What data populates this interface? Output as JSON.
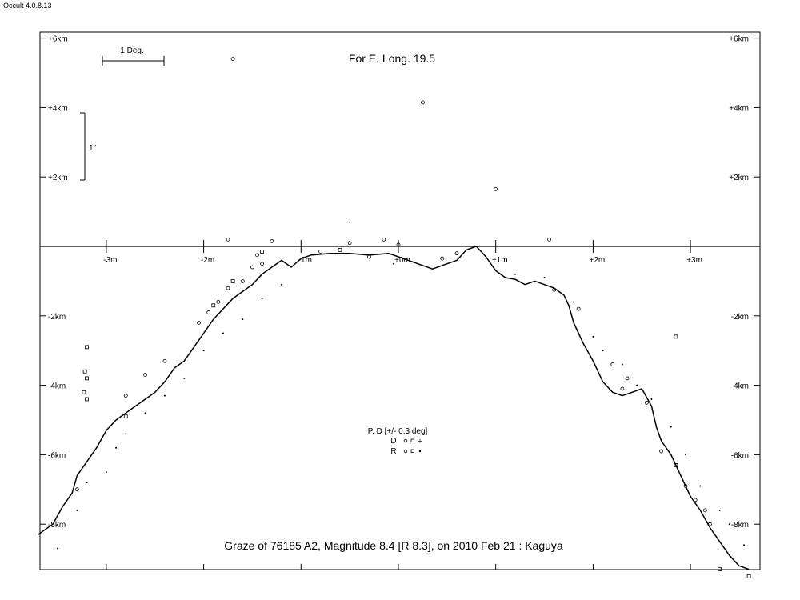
{
  "app": {
    "title": "Occult 4.0.8.13"
  },
  "chart_data": {
    "type": "scatter",
    "title": "Graze of  76185 A2,  Magnitude 8.4 [R 8.3],  on 2010 Feb 21  :  Kaguya",
    "subtitle": "For E. Long. 19.5",
    "xlabel": "",
    "ylabel": "",
    "xlim": [
      -3.7,
      3.7
    ],
    "ylim": [
      -9.3,
      6.2
    ],
    "x_unit": "m",
    "y_unit": "km",
    "x_ticks": [
      {
        "value": -3,
        "label": "-3m"
      },
      {
        "value": -2,
        "label": "-2m"
      },
      {
        "value": -1,
        "label": "-1m"
      },
      {
        "value": 0,
        "label": "+0m"
      },
      {
        "value": 1,
        "label": "+1m"
      },
      {
        "value": 2,
        "label": "+2m"
      },
      {
        "value": 3,
        "label": "+3m"
      }
    ],
    "y_ticks": [
      {
        "value": 6,
        "label": "+6km"
      },
      {
        "value": 4,
        "label": "+4km"
      },
      {
        "value": 2,
        "label": "+2km"
      },
      {
        "value": -2,
        "label": "-2km"
      },
      {
        "value": -4,
        "label": "-4km"
      },
      {
        "value": -6,
        "label": "-6km"
      },
      {
        "value": -8,
        "label": "-8km"
      }
    ],
    "scale_bars": {
      "horizontal_label": "1 Deg.",
      "vertical_label": "1\""
    },
    "legend": {
      "placement": "bottom-center",
      "header": "P, D [+/- 0.3 deg]",
      "rows": [
        {
          "label": "D",
          "symbols": [
            "circle",
            "square",
            "plus"
          ]
        },
        {
          "label": "R",
          "symbols": [
            "circle",
            "square",
            "dot"
          ]
        }
      ]
    },
    "series": [
      {
        "kind": "limb-profile",
        "points": [
          [
            -3.7,
            -8.3
          ],
          [
            -3.55,
            -8.0
          ],
          [
            -3.45,
            -7.5
          ],
          [
            -3.35,
            -7.1
          ],
          [
            -3.3,
            -6.6
          ],
          [
            -3.2,
            -6.2
          ],
          [
            -3.1,
            -5.8
          ],
          [
            -3.0,
            -5.3
          ],
          [
            -2.9,
            -5.0
          ],
          [
            -2.8,
            -4.8
          ],
          [
            -2.7,
            -4.6
          ],
          [
            -2.6,
            -4.4
          ],
          [
            -2.5,
            -4.2
          ],
          [
            -2.4,
            -3.9
          ],
          [
            -2.3,
            -3.5
          ],
          [
            -2.2,
            -3.3
          ],
          [
            -2.1,
            -2.9
          ],
          [
            -2.0,
            -2.5
          ],
          [
            -1.9,
            -2.1
          ],
          [
            -1.8,
            -1.8
          ],
          [
            -1.7,
            -1.5
          ],
          [
            -1.6,
            -1.3
          ],
          [
            -1.5,
            -1.1
          ],
          [
            -1.4,
            -0.8
          ],
          [
            -1.3,
            -0.6
          ],
          [
            -1.2,
            -0.4
          ],
          [
            -1.1,
            -0.6
          ],
          [
            -1.0,
            -0.35
          ],
          [
            -0.9,
            -0.25
          ],
          [
            -0.7,
            -0.2
          ],
          [
            -0.5,
            -0.2
          ],
          [
            -0.3,
            -0.25
          ],
          [
            -0.1,
            -0.2
          ],
          [
            0.0,
            -0.3
          ],
          [
            0.2,
            -0.5
          ],
          [
            0.35,
            -0.65
          ],
          [
            0.5,
            -0.5
          ],
          [
            0.6,
            -0.4
          ],
          [
            0.7,
            -0.1
          ],
          [
            0.8,
            0.0
          ],
          [
            0.9,
            -0.3
          ],
          [
            1.0,
            -0.7
          ],
          [
            1.1,
            -0.9
          ],
          [
            1.2,
            -0.95
          ],
          [
            1.3,
            -1.1
          ],
          [
            1.4,
            -1.0
          ],
          [
            1.5,
            -1.1
          ],
          [
            1.6,
            -1.2
          ],
          [
            1.7,
            -1.4
          ],
          [
            1.75,
            -1.7
          ],
          [
            1.8,
            -2.2
          ],
          [
            1.9,
            -2.8
          ],
          [
            2.0,
            -3.3
          ],
          [
            2.1,
            -3.9
          ],
          [
            2.2,
            -4.2
          ],
          [
            2.3,
            -4.3
          ],
          [
            2.4,
            -4.2
          ],
          [
            2.5,
            -4.1
          ],
          [
            2.6,
            -4.6
          ],
          [
            2.65,
            -5.2
          ],
          [
            2.7,
            -5.6
          ],
          [
            2.8,
            -6.0
          ],
          [
            2.9,
            -6.6
          ],
          [
            3.0,
            -7.2
          ],
          [
            3.1,
            -7.6
          ],
          [
            3.2,
            -8.1
          ],
          [
            3.3,
            -8.5
          ],
          [
            3.4,
            -8.9
          ],
          [
            3.5,
            -9.2
          ],
          [
            3.6,
            -9.3
          ]
        ]
      },
      {
        "kind": "observations-circle",
        "points": [
          [
            -1.7,
            5.4
          ],
          [
            0.25,
            4.15
          ],
          [
            1.0,
            1.65
          ],
          [
            -1.75,
            0.2
          ],
          [
            1.55,
            0.2
          ],
          [
            -1.3,
            0.15
          ],
          [
            -0.15,
            0.2
          ],
          [
            -0.5,
            0.1
          ],
          [
            0.0,
            0.05
          ],
          [
            -3.3,
            -7.0
          ],
          [
            -2.8,
            -4.3
          ],
          [
            -2.6,
            -3.7
          ],
          [
            -2.4,
            -3.3
          ],
          [
            -2.05,
            -2.2
          ],
          [
            -1.95,
            -1.9
          ],
          [
            -1.85,
            -1.6
          ],
          [
            -1.75,
            -1.2
          ],
          [
            -1.6,
            -1.0
          ],
          [
            -1.5,
            -0.6
          ],
          [
            -1.45,
            -0.25
          ],
          [
            -1.4,
            -0.5
          ],
          [
            -0.8,
            -0.15
          ],
          [
            -0.3,
            -0.3
          ],
          [
            0.45,
            -0.35
          ],
          [
            0.6,
            -0.2
          ],
          [
            1.6,
            -1.25
          ],
          [
            1.85,
            -1.8
          ],
          [
            2.2,
            -3.4
          ],
          [
            2.3,
            -4.1
          ],
          [
            2.35,
            -3.8
          ],
          [
            2.55,
            -4.5
          ],
          [
            2.7,
            -5.9
          ],
          [
            2.95,
            -6.9
          ],
          [
            3.05,
            -7.3
          ],
          [
            3.15,
            -7.6
          ],
          [
            3.2,
            -8.0
          ]
        ]
      },
      {
        "kind": "observations-square",
        "points": [
          [
            -3.2,
            -2.9
          ],
          [
            -3.22,
            -3.6
          ],
          [
            -3.2,
            -3.8
          ],
          [
            -3.23,
            -4.2
          ],
          [
            -3.2,
            -4.4
          ],
          [
            -2.8,
            -4.9
          ],
          [
            -1.9,
            -1.7
          ],
          [
            -1.7,
            -1.0
          ],
          [
            -1.4,
            -0.15
          ],
          [
            -0.6,
            -0.1
          ],
          [
            2.85,
            -2.6
          ],
          [
            2.85,
            -6.3
          ],
          [
            3.3,
            -9.3
          ],
          [
            3.6,
            -9.5
          ]
        ]
      },
      {
        "kind": "observations-dot",
        "points": [
          [
            -3.5,
            -8.7
          ],
          [
            -3.3,
            -7.6
          ],
          [
            -3.2,
            -6.8
          ],
          [
            -3.0,
            -6.5
          ],
          [
            -2.9,
            -5.8
          ],
          [
            -2.8,
            -5.4
          ],
          [
            -2.6,
            -4.8
          ],
          [
            -2.4,
            -4.3
          ],
          [
            -2.2,
            -3.8
          ],
          [
            -2.0,
            -3.0
          ],
          [
            -1.8,
            -2.5
          ],
          [
            -1.6,
            -2.1
          ],
          [
            -1.4,
            -1.5
          ],
          [
            -1.2,
            -1.1
          ],
          [
            -0.5,
            0.7
          ],
          [
            -0.05,
            -0.5
          ],
          [
            1.2,
            -0.8
          ],
          [
            1.5,
            -0.9
          ],
          [
            1.8,
            -1.6
          ],
          [
            2.0,
            -2.6
          ],
          [
            2.1,
            -3.0
          ],
          [
            2.3,
            -3.4
          ],
          [
            2.45,
            -4.0
          ],
          [
            2.6,
            -4.4
          ],
          [
            2.8,
            -5.2
          ],
          [
            2.95,
            -6.0
          ],
          [
            3.1,
            -6.9
          ],
          [
            3.3,
            -7.6
          ],
          [
            3.4,
            -8.0
          ],
          [
            3.55,
            -8.6
          ]
        ]
      }
    ]
  }
}
